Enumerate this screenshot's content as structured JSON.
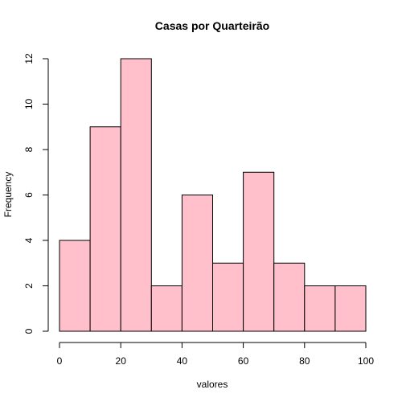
{
  "chart_data": {
    "type": "bar",
    "title": "Casas por Quarteirão",
    "xlabel": "valores",
    "ylabel": "Frequency",
    "bins": [
      {
        "start": 0,
        "end": 10,
        "value": 4
      },
      {
        "start": 10,
        "end": 20,
        "value": 9
      },
      {
        "start": 20,
        "end": 30,
        "value": 12
      },
      {
        "start": 30,
        "end": 40,
        "value": 2
      },
      {
        "start": 40,
        "end": 50,
        "value": 6
      },
      {
        "start": 50,
        "end": 60,
        "value": 3
      },
      {
        "start": 60,
        "end": 70,
        "value": 7
      },
      {
        "start": 70,
        "end": 80,
        "value": 3
      },
      {
        "start": 80,
        "end": 90,
        "value": 2
      },
      {
        "start": 90,
        "end": 100,
        "value": 2
      }
    ],
    "xlim": [
      0,
      100
    ],
    "ylim": [
      0,
      12
    ],
    "xticks": [
      0,
      20,
      40,
      60,
      80,
      100
    ],
    "yticks": [
      0,
      2,
      4,
      6,
      8,
      10,
      12
    ],
    "bar_color": "#ffc0cb",
    "grid": false
  }
}
